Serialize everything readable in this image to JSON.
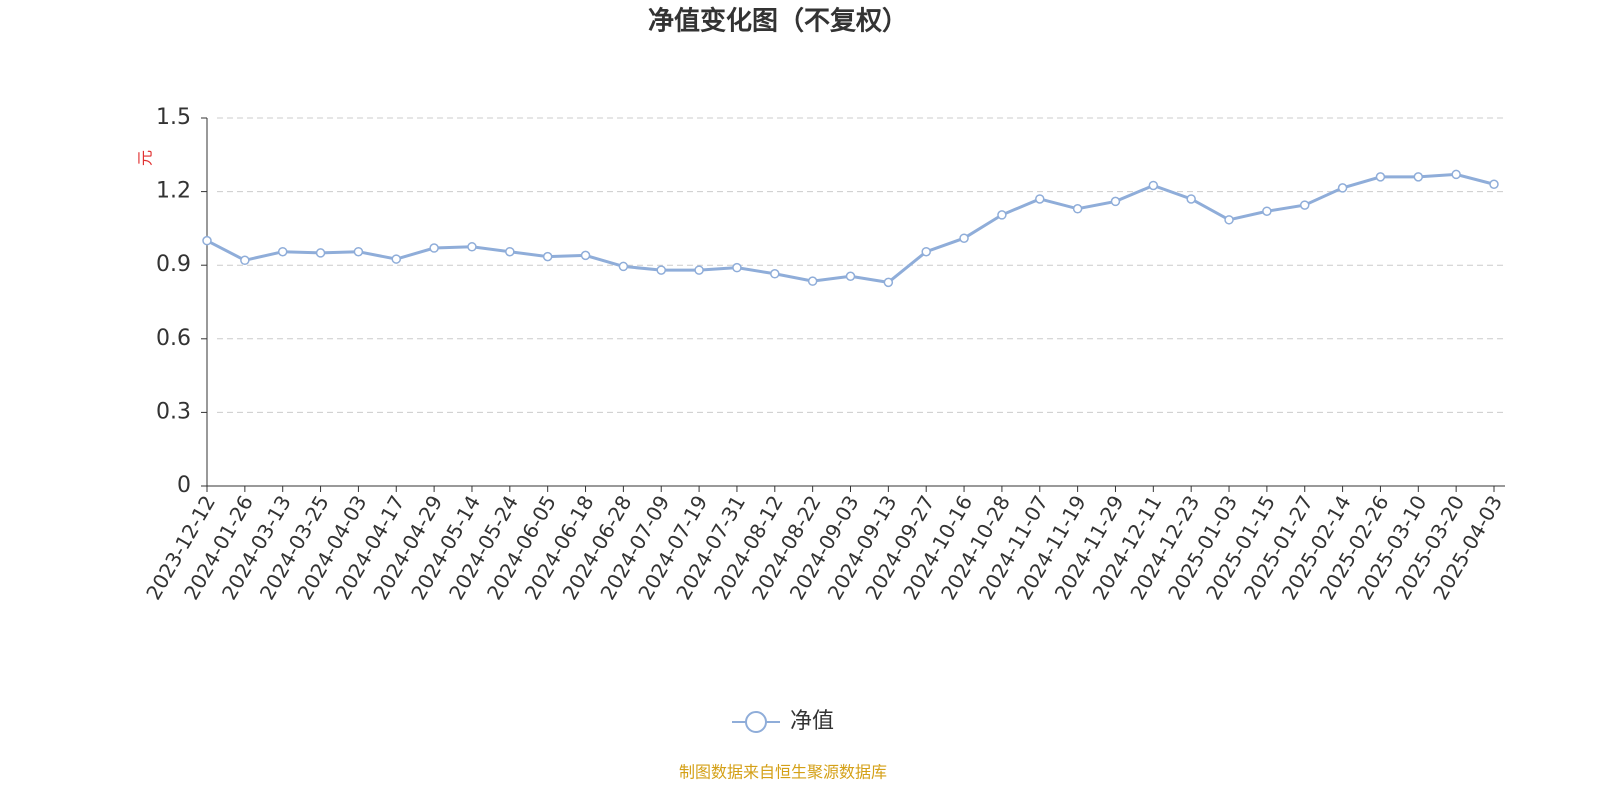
{
  "chart_data": {
    "type": "line",
    "title": "净值变化图（不复权）",
    "y_label": "元",
    "source": "制图数据来自恒生聚源数据库",
    "categories": [
      "2023-12-12",
      "2024-01-26",
      "2024-03-13",
      "2024-03-25",
      "2024-04-03",
      "2024-04-17",
      "2024-04-29",
      "2024-05-14",
      "2024-05-24",
      "2024-06-05",
      "2024-06-18",
      "2024-06-28",
      "2024-07-09",
      "2024-07-19",
      "2024-07-31",
      "2024-08-12",
      "2024-08-22",
      "2024-09-03",
      "2024-09-13",
      "2024-09-27",
      "2024-10-16",
      "2024-10-28",
      "2024-11-07",
      "2024-11-19",
      "2024-11-29",
      "2024-12-11",
      "2024-12-23",
      "2025-01-03",
      "2025-01-15",
      "2025-01-27",
      "2025-02-14",
      "2025-02-26",
      "2025-03-10",
      "2025-03-20",
      "2025-04-03"
    ],
    "series": [
      {
        "name": "净值",
        "color": "#8fadd9",
        "values": [
          1.0,
          0.92,
          0.955,
          0.95,
          0.955,
          0.925,
          0.97,
          0.975,
          0.955,
          0.935,
          0.94,
          0.895,
          0.88,
          0.88,
          0.89,
          0.865,
          0.835,
          0.855,
          0.83,
          0.955,
          1.01,
          1.105,
          1.17,
          1.13,
          1.16,
          1.225,
          1.17,
          1.085,
          1.12,
          1.145,
          1.215,
          1.26,
          1.26,
          1.27,
          1.23
        ]
      }
    ],
    "ylim": [
      0,
      1.5
    ],
    "yticks": [
      0,
      0.3,
      0.6,
      0.9,
      1.2,
      1.5
    ],
    "grid": true
  }
}
